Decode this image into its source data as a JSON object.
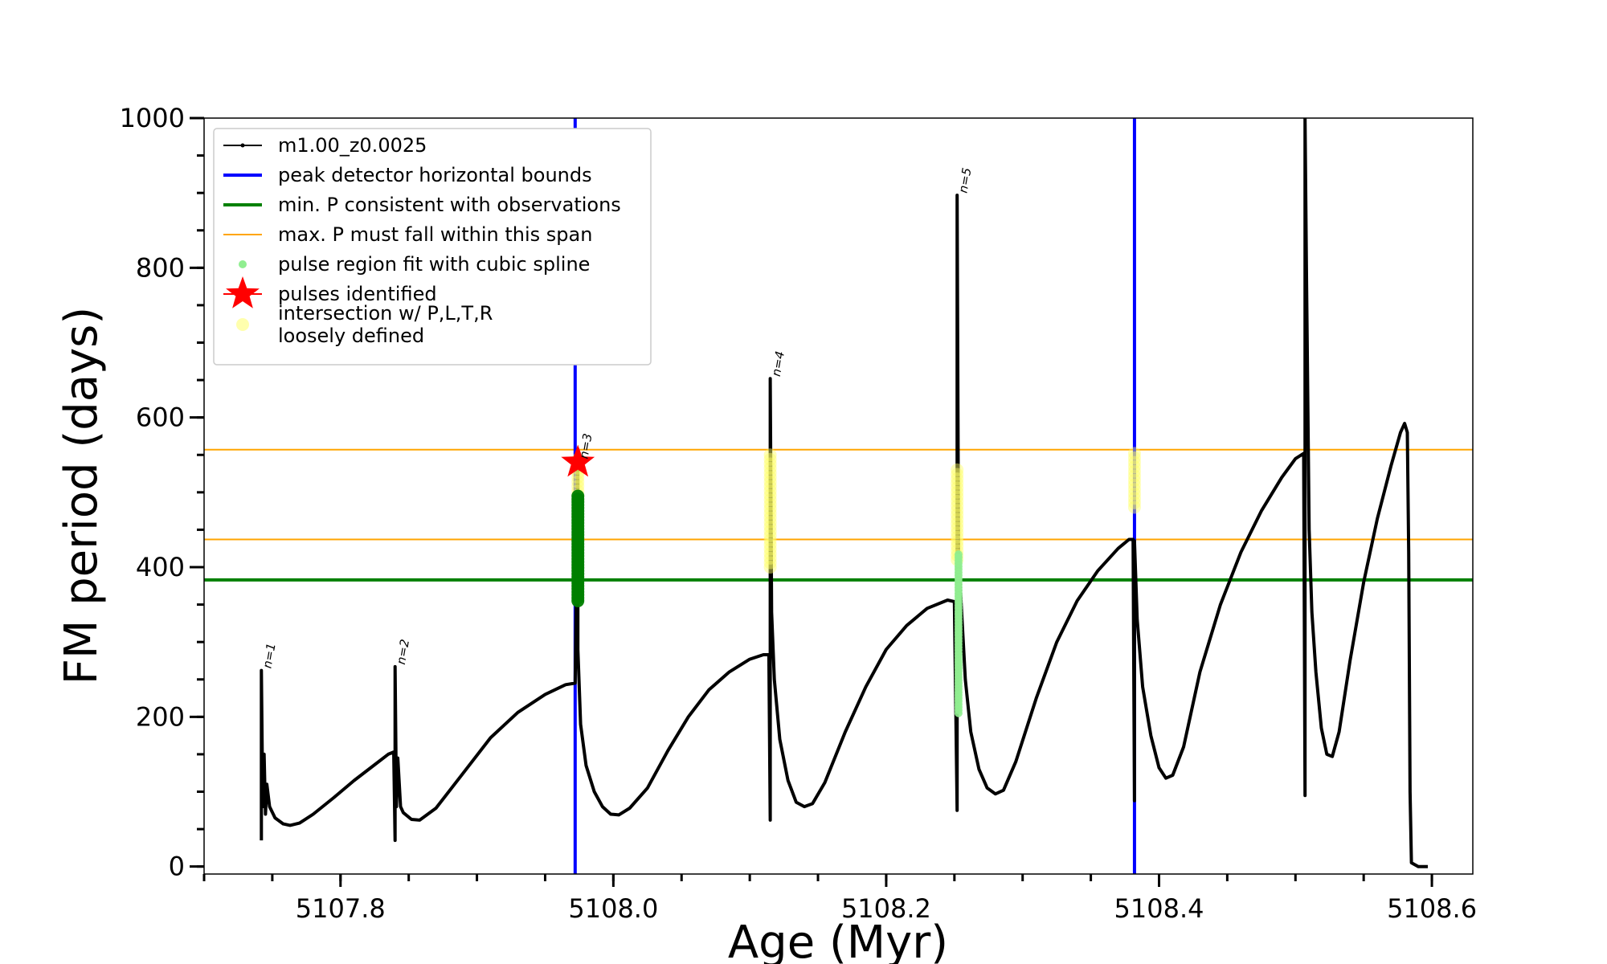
{
  "chart_data": {
    "type": "line",
    "title": "",
    "xlabel": "Age (Myr)",
    "ylabel": "FM period (days)",
    "xlim": [
      5107.7,
      5108.63
    ],
    "ylim": [
      -10,
      1000
    ],
    "x_ticks": [
      5107.8,
      5108.0,
      5108.2,
      5108.4,
      5108.6
    ],
    "x_tick_labels": [
      "5107.8",
      "5108.0",
      "5108.2",
      "5108.4",
      "5108.6"
    ],
    "y_ticks": [
      0,
      200,
      400,
      600,
      800,
      1000
    ],
    "y_tick_labels": [
      "0",
      "200",
      "400",
      "600",
      "800",
      "1000"
    ],
    "grid": false,
    "legend_position": "top-left",
    "legend": [
      {
        "label": "m1.00_z0.0025",
        "kind": "line-marker",
        "color": "#000000"
      },
      {
        "label": "peak detector horizontal bounds",
        "kind": "line",
        "color": "#0000ff"
      },
      {
        "label": "min. P consistent with observations",
        "kind": "line",
        "color": "#008000"
      },
      {
        "label": "max. P must fall within this span",
        "kind": "line",
        "color": "#ffa500"
      },
      {
        "label": "pulse region fit with cubic spline",
        "kind": "dot",
        "color": "#90ee90"
      },
      {
        "label": "pulses identified",
        "kind": "star",
        "color": "#ff0000"
      },
      {
        "label": "intersection w/ P,L,T,R\nloosely defined",
        "kind": "dot",
        "color": "#ffff99"
      }
    ],
    "vertical_lines": [
      {
        "x": 5107.972,
        "color": "#0000ff"
      },
      {
        "x": 5108.382,
        "color": "#0000ff"
      }
    ],
    "horizontal_lines": [
      {
        "y": 383,
        "color": "#008000"
      },
      {
        "y": 557,
        "color": "#ffa500"
      },
      {
        "y": 437,
        "color": "#ffa500"
      }
    ],
    "pulses": [
      {
        "label": "n=1",
        "x": 5107.742,
        "peak": 262
      },
      {
        "label": "n=2",
        "x": 5107.84,
        "peak": 267
      },
      {
        "label": "n=3",
        "x": 5107.974,
        "peak": 542
      },
      {
        "label": "n=4",
        "x": 5108.115,
        "peak": 652
      },
      {
        "label": "n=5",
        "x": 5108.252,
        "peak": 897
      }
    ],
    "star": {
      "x": 5107.974,
      "y": 540
    },
    "series": [
      {
        "name": "m1.00_z0.0025",
        "color": "#000000",
        "points": [
          [
            5107.742,
            35
          ],
          [
            5107.742,
            262
          ],
          [
            5107.743,
            80
          ],
          [
            5107.744,
            150
          ],
          [
            5107.745,
            70
          ],
          [
            5107.746,
            110
          ],
          [
            5107.748,
            80
          ],
          [
            5107.752,
            65
          ],
          [
            5107.758,
            57
          ],
          [
            5107.763,
            55
          ],
          [
            5107.77,
            58
          ],
          [
            5107.78,
            70
          ],
          [
            5107.795,
            92
          ],
          [
            5107.81,
            115
          ],
          [
            5107.825,
            136
          ],
          [
            5107.835,
            150
          ],
          [
            5107.839,
            153
          ],
          [
            5107.84,
            35
          ],
          [
            5107.84,
            267
          ],
          [
            5107.841,
            80
          ],
          [
            5107.842,
            145
          ],
          [
            5107.844,
            80
          ],
          [
            5107.846,
            72
          ],
          [
            5107.852,
            63
          ],
          [
            5107.858,
            62
          ],
          [
            5107.87,
            78
          ],
          [
            5107.89,
            125
          ],
          [
            5107.91,
            172
          ],
          [
            5107.93,
            206
          ],
          [
            5107.95,
            230
          ],
          [
            5107.965,
            243
          ],
          [
            5107.972,
            245
          ],
          [
            5107.974,
            542
          ],
          [
            5107.974,
            290
          ],
          [
            5107.976,
            190
          ],
          [
            5107.98,
            135
          ],
          [
            5107.986,
            100
          ],
          [
            5107.992,
            80
          ],
          [
            5107.998,
            70
          ],
          [
            5108.004,
            69
          ],
          [
            5108.012,
            78
          ],
          [
            5108.025,
            105
          ],
          [
            5108.04,
            155
          ],
          [
            5108.055,
            200
          ],
          [
            5108.07,
            236
          ],
          [
            5108.085,
            260
          ],
          [
            5108.1,
            277
          ],
          [
            5108.11,
            283
          ],
          [
            5108.114,
            283
          ],
          [
            5108.115,
            62
          ],
          [
            5108.115,
            652
          ],
          [
            5108.116,
            340
          ],
          [
            5108.118,
            250
          ],
          [
            5108.122,
            170
          ],
          [
            5108.128,
            115
          ],
          [
            5108.134,
            86
          ],
          [
            5108.14,
            80
          ],
          [
            5108.146,
            84
          ],
          [
            5108.155,
            112
          ],
          [
            5108.17,
            180
          ],
          [
            5108.185,
            240
          ],
          [
            5108.2,
            290
          ],
          [
            5108.215,
            322
          ],
          [
            5108.23,
            345
          ],
          [
            5108.245,
            356
          ],
          [
            5108.25,
            354
          ],
          [
            5108.252,
            75
          ],
          [
            5108.252,
            897
          ],
          [
            5108.253,
            420
          ],
          [
            5108.255,
            350
          ],
          [
            5108.258,
            250
          ],
          [
            5108.262,
            180
          ],
          [
            5108.268,
            130
          ],
          [
            5108.274,
            105
          ],
          [
            5108.28,
            97
          ],
          [
            5108.286,
            102
          ],
          [
            5108.295,
            140
          ],
          [
            5108.31,
            225
          ],
          [
            5108.325,
            300
          ],
          [
            5108.34,
            355
          ],
          [
            5108.355,
            395
          ],
          [
            5108.37,
            425
          ],
          [
            5108.378,
            437
          ],
          [
            5108.381,
            437
          ],
          [
            5108.382,
            88
          ],
          [
            5108.382,
            435
          ],
          [
            5108.384,
            330
          ],
          [
            5108.388,
            240
          ],
          [
            5108.394,
            175
          ],
          [
            5108.4,
            132
          ],
          [
            5108.405,
            118
          ],
          [
            5108.41,
            122
          ],
          [
            5108.418,
            160
          ],
          [
            5108.43,
            260
          ],
          [
            5108.445,
            350
          ],
          [
            5108.46,
            420
          ],
          [
            5108.475,
            475
          ],
          [
            5108.49,
            520
          ],
          [
            5108.5,
            545
          ],
          [
            5108.506,
            552
          ],
          [
            5108.507,
            95
          ],
          [
            5108.507,
            1000
          ],
          [
            5108.508,
            800
          ],
          [
            5108.51,
            450
          ],
          [
            5108.512,
            340
          ],
          [
            5108.515,
            260
          ],
          [
            5108.519,
            185
          ],
          [
            5108.523,
            150
          ],
          [
            5108.527,
            147
          ],
          [
            5108.532,
            180
          ],
          [
            5108.54,
            275
          ],
          [
            5108.55,
            380
          ],
          [
            5108.56,
            465
          ],
          [
            5108.57,
            535
          ],
          [
            5108.577,
            580
          ],
          [
            5108.58,
            592
          ],
          [
            5108.582,
            580
          ],
          [
            5108.583,
            420
          ],
          [
            5108.584,
            100
          ],
          [
            5108.585,
            5
          ],
          [
            5108.59,
            0
          ],
          [
            5108.597,
            0
          ]
        ]
      }
    ],
    "cubic_spline_points": {
      "x": 5108.253,
      "y_range": [
        205,
        420
      ],
      "color": "#90ee90"
    },
    "green_points": {
      "x": 5107.974,
      "y_range": [
        355,
        495
      ],
      "color": "#008000"
    },
    "yellow_points": [
      {
        "x": 5107.974,
        "y_range": [
          490,
          545
        ]
      },
      {
        "x": 5108.115,
        "y_range": [
          400,
          550
        ]
      },
      {
        "x": 5108.252,
        "y_range": [
          410,
          530
        ]
      },
      {
        "x": 5108.382,
        "y_range": [
          480,
          555
        ]
      }
    ]
  }
}
